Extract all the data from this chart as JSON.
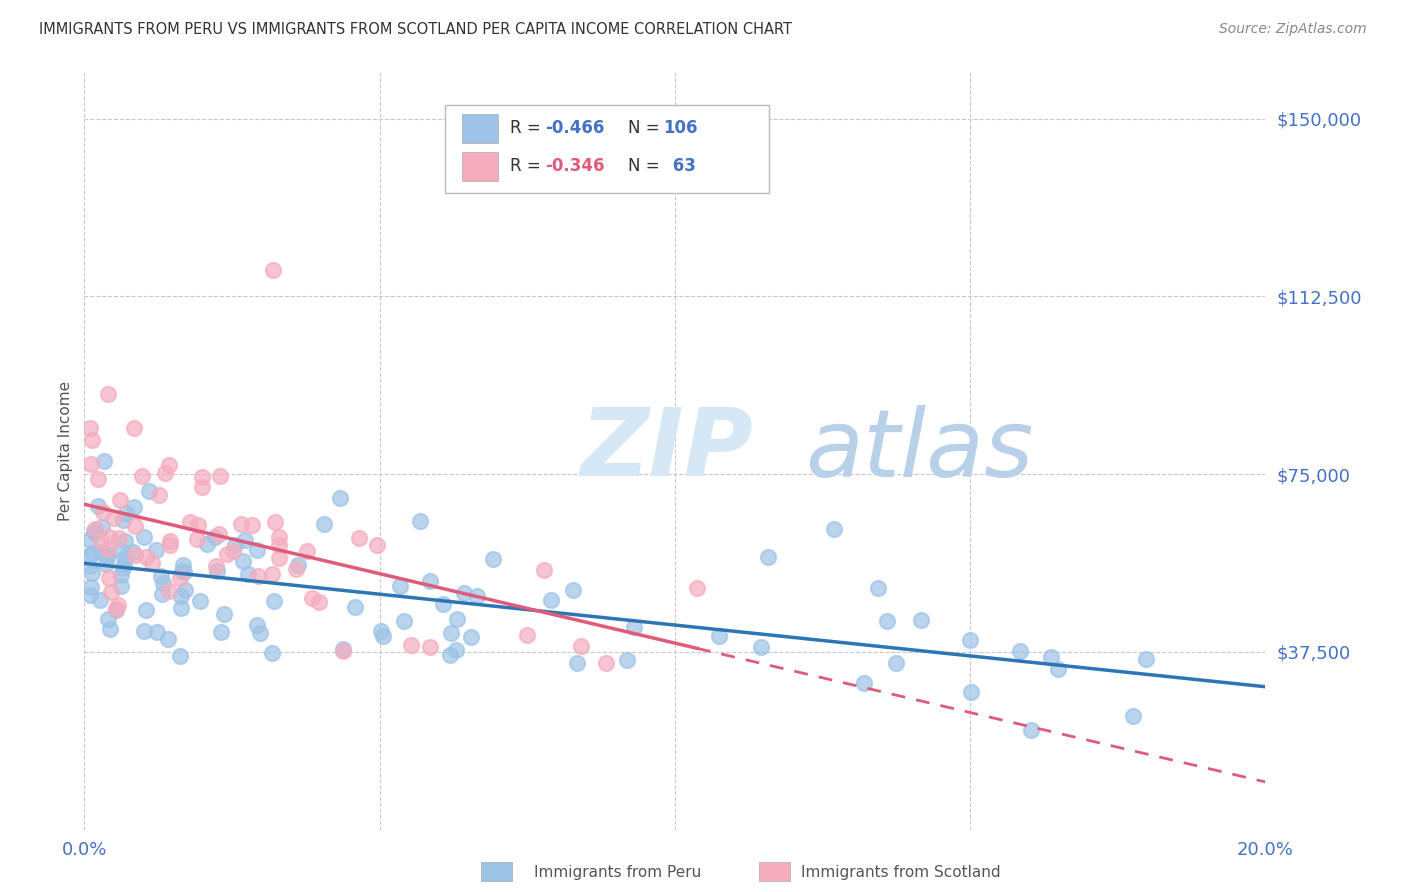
{
  "title": "IMMIGRANTS FROM PERU VS IMMIGRANTS FROM SCOTLAND PER CAPITA INCOME CORRELATION CHART",
  "source": "Source: ZipAtlas.com",
  "ylabel": "Per Capita Income",
  "ytick_vals": [
    0,
    37500,
    75000,
    112500,
    150000
  ],
  "ytick_labels": [
    "",
    "$37,500",
    "$75,000",
    "$112,500",
    "$150,000"
  ],
  "xmin": 0.0,
  "xmax": 0.2,
  "ymin": 0,
  "ymax": 160000,
  "peru_color": "#9dc3e6",
  "scotland_color": "#f4acbe",
  "peru_line_color": "#2e75b6",
  "scotland_line_color": "#e05a7a",
  "peru_R": "-0.466",
  "peru_N": "106",
  "scotland_R": "-0.346",
  "scotland_N": "63",
  "bottom_legend_peru": "Immigrants from Peru",
  "bottom_legend_scotland": "Immigrants from Scotland",
  "axis_color": "#4472c4",
  "grid_color": "#c8c8c8",
  "watermark_zip_color": "#d6e8f5",
  "watermark_atlas_color": "#b8d0e8"
}
